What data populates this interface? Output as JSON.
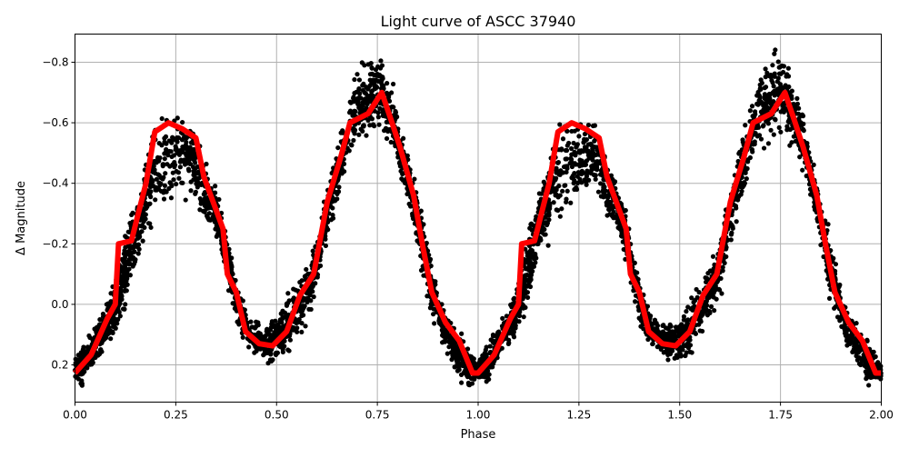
{
  "chart_data": {
    "type": "scatter",
    "title": "Light curve of ASCC 37940",
    "xlabel": "Phase",
    "ylabel": "Δ Magnitude",
    "xlim": [
      0,
      2
    ],
    "ylim": [
      0.323,
      -0.893
    ],
    "y_inverted": true,
    "grid": true,
    "xticks": [
      "0.00",
      "0.25",
      "0.50",
      "0.75",
      "1.00",
      "1.25",
      "1.50",
      "1.75",
      "2.00"
    ],
    "xtick_values": [
      0,
      0.25,
      0.5,
      0.75,
      1,
      1.25,
      1.5,
      1.75,
      2
    ],
    "yticks": [
      "−0.8",
      "−0.6",
      "−0.4",
      "−0.2",
      "0.0",
      "0.2"
    ],
    "ytick_values": [
      -0.8,
      -0.6,
      -0.4,
      -0.2,
      0.0,
      0.2
    ],
    "colors": {
      "points": "#000000",
      "curve": "#ff0000"
    },
    "observations_range": {
      "x": [
        0.0,
        0.02,
        0.05,
        0.08,
        0.1,
        0.12,
        0.14,
        0.17,
        0.2,
        0.25,
        0.29,
        0.32,
        0.35,
        0.37,
        0.4,
        0.43,
        0.47,
        0.5,
        0.53,
        0.57,
        0.6,
        0.63,
        0.66,
        0.7,
        0.73,
        0.76,
        0.79,
        0.82,
        0.85,
        0.88,
        0.91,
        0.94,
        0.97,
        1.0,
        1.02,
        1.05,
        1.08,
        1.1,
        1.12,
        1.14,
        1.17,
        1.2,
        1.25,
        1.29,
        1.32,
        1.35,
        1.37,
        1.4,
        1.43,
        1.47,
        1.5,
        1.53,
        1.57,
        1.6,
        1.63,
        1.66,
        1.7,
        1.73,
        1.76,
        1.79,
        1.82,
        1.85,
        1.88,
        1.91,
        1.94,
        1.97,
        2.0
      ],
      "min": [
        0.18,
        0.12,
        0.06,
        -0.02,
        -0.1,
        -0.25,
        -0.35,
        -0.48,
        -0.65,
        -0.69,
        -0.64,
        -0.5,
        -0.4,
        -0.3,
        -0.1,
        0.02,
        0.05,
        0.02,
        -0.05,
        -0.15,
        -0.25,
        -0.45,
        -0.6,
        -0.8,
        -0.87,
        -0.86,
        -0.74,
        -0.55,
        -0.4,
        -0.2,
        -0.02,
        0.05,
        0.1,
        0.18,
        0.12,
        0.06,
        -0.02,
        -0.1,
        -0.25,
        -0.35,
        -0.48,
        -0.65,
        -0.69,
        -0.64,
        -0.5,
        -0.4,
        -0.3,
        -0.1,
        0.02,
        0.05,
        0.02,
        -0.05,
        -0.15,
        -0.25,
        -0.45,
        -0.6,
        -0.8,
        -0.87,
        -0.86,
        -0.74,
        -0.55,
        -0.4,
        -0.2,
        -0.02,
        0.05,
        0.1,
        0.18
      ],
      "max": [
        0.26,
        0.28,
        0.2,
        0.15,
        0.1,
        0.05,
        -0.05,
        -0.15,
        -0.25,
        -0.3,
        -0.35,
        -0.25,
        -0.2,
        -0.1,
        0.08,
        0.16,
        0.2,
        0.22,
        0.18,
        0.1,
        0.0,
        -0.2,
        -0.35,
        -0.5,
        -0.5,
        -0.55,
        -0.45,
        -0.35,
        -0.15,
        0.05,
        0.15,
        0.22,
        0.3,
        0.26,
        0.28,
        0.2,
        0.15,
        0.1,
        0.05,
        -0.05,
        -0.15,
        -0.25,
        -0.3,
        -0.35,
        -0.25,
        -0.2,
        -0.1,
        0.08,
        0.16,
        0.2,
        0.22,
        0.18,
        0.1,
        0.0,
        -0.2,
        -0.35,
        -0.5,
        -0.5,
        -0.55,
        -0.45,
        -0.35,
        -0.15,
        0.05,
        0.15,
        0.22,
        0.3,
        0.26
      ]
    },
    "model_curve": {
      "x": [
        0,
        0.04,
        0.08,
        0.1,
        0.108,
        0.14,
        0.153,
        0.176,
        0.198,
        0.232,
        0.266,
        0.3,
        0.32,
        0.345,
        0.367,
        0.378,
        0.4,
        0.423,
        0.457,
        0.49,
        0.525,
        0.558,
        0.592,
        0.626,
        0.66,
        0.682,
        0.727,
        0.761,
        0.784,
        0.806,
        0.84,
        0.863,
        0.885,
        0.919,
        0.953,
        0.986,
        1.0,
        1.04,
        1.08,
        1.1,
        1.108,
        1.14,
        1.153,
        1.176,
        1.198,
        1.232,
        1.266,
        1.3,
        1.32,
        1.345,
        1.367,
        1.378,
        1.4,
        1.423,
        1.457,
        1.49,
        1.525,
        1.558,
        1.592,
        1.626,
        1.66,
        1.682,
        1.727,
        1.761,
        1.784,
        1.806,
        1.84,
        1.863,
        1.885,
        1.919,
        1.953,
        1.986,
        2.0
      ],
      "y": [
        0.227,
        0.167,
        0.047,
        0.0,
        -0.2,
        -0.21,
        -0.28,
        -0.4,
        -0.57,
        -0.6,
        -0.58,
        -0.55,
        -0.42,
        -0.33,
        -0.25,
        -0.1,
        -0.04,
        0.09,
        0.13,
        0.137,
        0.09,
        -0.03,
        -0.1,
        -0.34,
        -0.49,
        -0.6,
        -0.63,
        -0.7,
        -0.61,
        -0.52,
        -0.36,
        -0.19,
        -0.04,
        0.06,
        0.12,
        0.227,
        0.227,
        0.167,
        0.047,
        0.0,
        -0.2,
        -0.21,
        -0.28,
        -0.4,
        -0.57,
        -0.6,
        -0.58,
        -0.55,
        -0.42,
        -0.33,
        -0.25,
        -0.1,
        -0.04,
        0.09,
        0.13,
        0.137,
        0.09,
        -0.03,
        -0.1,
        -0.34,
        -0.49,
        -0.6,
        -0.63,
        -0.7,
        -0.61,
        -0.52,
        -0.36,
        -0.19,
        -0.04,
        0.06,
        0.12,
        0.227,
        0.227
      ]
    }
  }
}
